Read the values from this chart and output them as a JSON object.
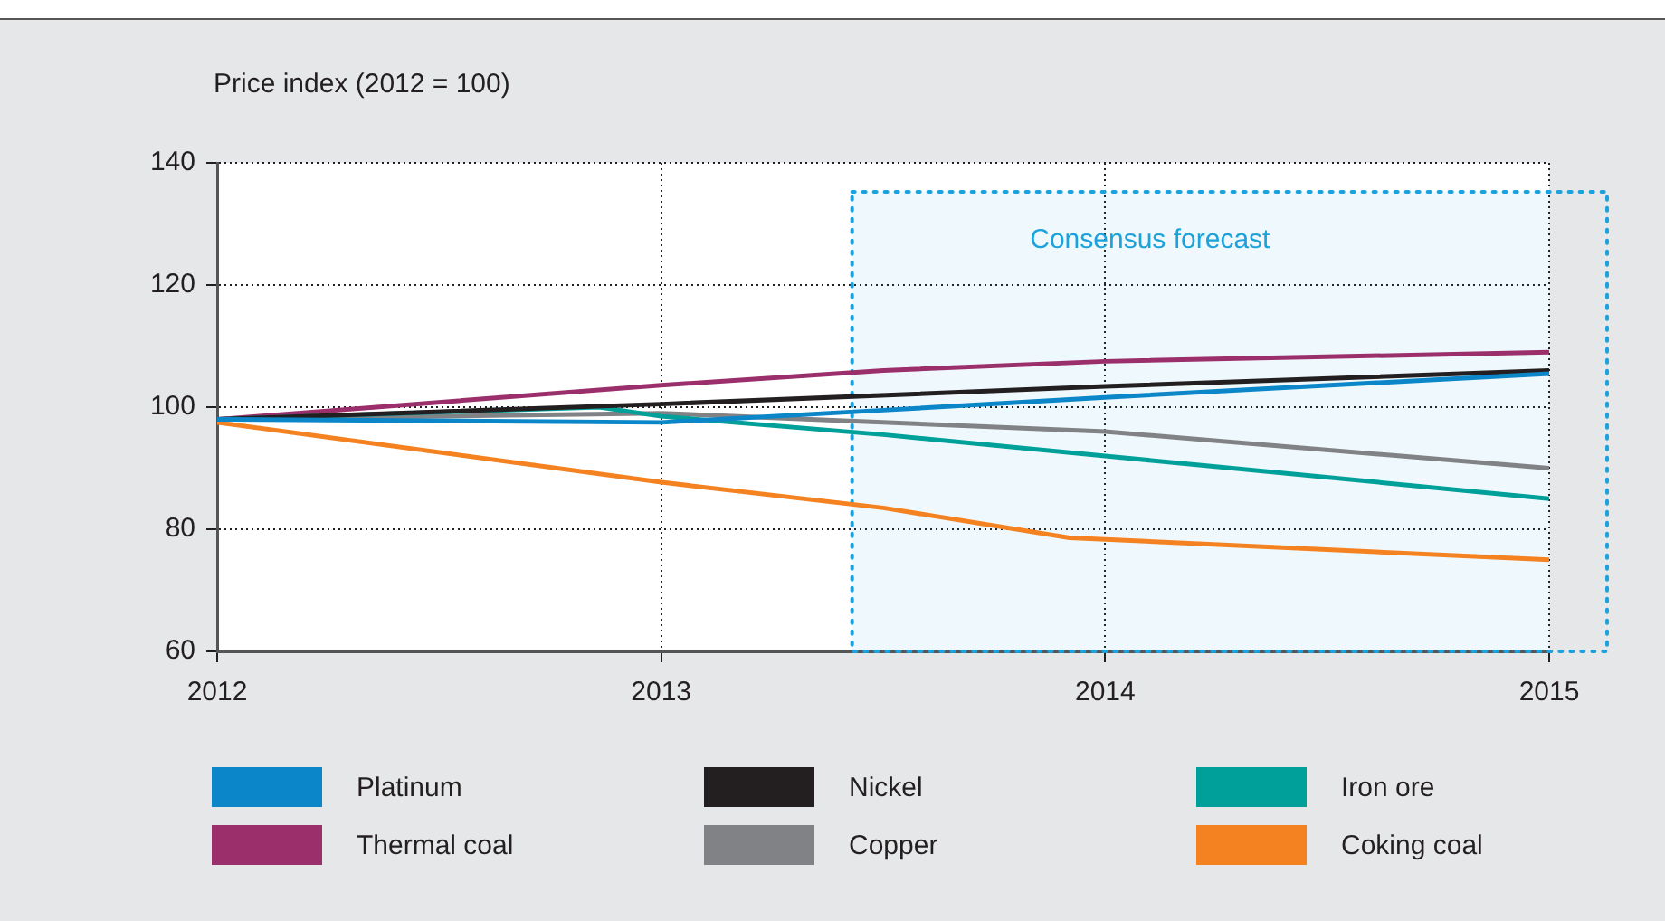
{
  "chart_data": {
    "type": "line",
    "ylabel": "Price index (2012 = 100)",
    "xlim": [
      2012,
      2015
    ],
    "xticks": [
      2012,
      2013,
      2014,
      2015
    ],
    "ylim": [
      60,
      140
    ],
    "yticks": [
      60,
      80,
      100,
      120,
      140
    ],
    "grid": true,
    "legend": "bottom",
    "marker": "none",
    "line_style": "solid",
    "bands": [
      {
        "axis": "x",
        "from": 2013.43,
        "to": 2015,
        "label": "Consensus forecast",
        "color": "#1ba1db"
      }
    ],
    "series": [
      {
        "name": "Platinum",
        "color": "#0a86c9",
        "x": [
          2012,
          2013,
          2013.5,
          2014,
          2015
        ],
        "values": [
          98,
          97.5,
          99.5,
          101.6,
          105.5
        ]
      },
      {
        "name": "Nickel",
        "color": "#231f20",
        "x": [
          2012,
          2013,
          2014,
          2015
        ],
        "values": [
          98,
          100.5,
          103.4,
          106
        ]
      },
      {
        "name": "Iron ore",
        "color": "#00a09a",
        "x": [
          2012,
          2012.86,
          2013,
          2013.5,
          2014,
          2015
        ],
        "values": [
          98,
          100,
          98.5,
          95.5,
          92,
          85
        ]
      },
      {
        "name": "Thermal coal",
        "color": "#9b2f6b",
        "x": [
          2012,
          2013,
          2013.5,
          2014,
          2015
        ],
        "values": [
          98,
          103.6,
          106,
          107.5,
          109
        ]
      },
      {
        "name": "Copper",
        "color": "#808285",
        "x": [
          2012,
          2013,
          2014,
          2015
        ],
        "values": [
          98,
          99,
          96,
          90
        ]
      },
      {
        "name": "Coking coal",
        "color": "#f58220",
        "x": [
          2012,
          2013,
          2013.5,
          2013.92,
          2015
        ],
        "values": [
          97.5,
          87.7,
          83.5,
          78.6,
          75
        ]
      }
    ]
  }
}
